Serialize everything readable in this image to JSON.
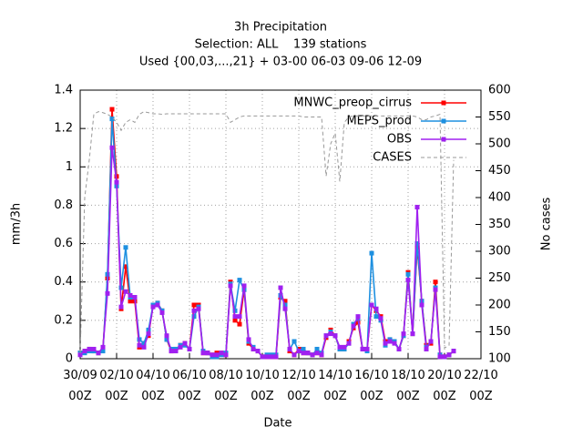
{
  "chart_data": {
    "type": "line",
    "title": "3h Precipitation",
    "subtitle": "Selection: ALL    139 stations",
    "note": "Used {00,03,...,21} + 03-00 06-03 09-06 12-09",
    "xlabel": "Date",
    "ylabel": "mm/3h",
    "y2label": "No cases",
    "x": [
      "30/09 00Z",
      "30/09 06Z",
      "30/09 12Z",
      "30/09 18Z",
      "01/10 00Z",
      "01/10 06Z",
      "01/10 12Z",
      "01/10 18Z",
      "02/10 00Z",
      "02/10 06Z",
      "02/10 12Z",
      "02/10 18Z",
      "03/10 00Z",
      "03/10 06Z",
      "03/10 12Z",
      "03/10 18Z",
      "04/10 00Z",
      "04/10 06Z",
      "04/10 12Z",
      "04/10 18Z",
      "05/10 00Z",
      "05/10 06Z",
      "05/10 12Z",
      "05/10 18Z",
      "06/10 00Z",
      "06/10 06Z",
      "06/10 12Z",
      "06/10 18Z",
      "07/10 00Z",
      "07/10 06Z",
      "07/10 12Z",
      "07/10 18Z",
      "08/10 00Z",
      "08/10 06Z",
      "08/10 12Z",
      "08/10 18Z",
      "09/10 00Z",
      "09/10 06Z",
      "09/10 12Z",
      "09/10 18Z",
      "10/10 00Z",
      "10/10 06Z",
      "10/10 12Z",
      "10/10 18Z",
      "11/10 00Z",
      "11/10 06Z",
      "11/10 12Z",
      "11/10 18Z",
      "12/10 00Z",
      "12/10 06Z",
      "12/10 12Z",
      "12/10 18Z",
      "13/10 00Z",
      "13/10 06Z",
      "13/10 12Z",
      "13/10 18Z",
      "14/10 00Z",
      "14/10 06Z",
      "14/10 12Z",
      "14/10 18Z",
      "15/10 00Z",
      "15/10 06Z",
      "15/10 12Z",
      "15/10 18Z",
      "16/10 00Z",
      "16/10 06Z",
      "16/10 12Z",
      "16/10 18Z",
      "17/10 00Z",
      "17/10 06Z",
      "17/10 12Z",
      "17/10 18Z",
      "18/10 00Z",
      "18/10 06Z",
      "18/10 12Z",
      "18/10 18Z",
      "19/10 00Z",
      "19/10 06Z",
      "19/10 12Z",
      "19/10 18Z",
      "20/10 00Z",
      "20/10 06Z",
      "20/10 12Z"
    ],
    "series": [
      {
        "name": "MNWC_preop_cirrus",
        "color": "#ff0000",
        "values": [
          0.03,
          0.04,
          0.05,
          0.04,
          0.03,
          0.05,
          0.42,
          1.3,
          0.95,
          0.26,
          0.48,
          0.3,
          0.3,
          0.06,
          0.08,
          0.12,
          0.28,
          0.29,
          0.25,
          0.1,
          0.04,
          0.05,
          0.07,
          0.08,
          0.05,
          0.28,
          0.28,
          0.03,
          0.03,
          0.02,
          0.03,
          0.03,
          0.02,
          0.4,
          0.2,
          0.18,
          0.36,
          0.08,
          0.05,
          0.04,
          0.01,
          0.01,
          0.01,
          0.01,
          0.32,
          0.3,
          0.04,
          0.02,
          0.05,
          0.03,
          0.03,
          0.02,
          0.03,
          0.02,
          0.11,
          0.15,
          0.12,
          0.05,
          0.05,
          0.09,
          0.16,
          0.19,
          0.05,
          0.05,
          0.28,
          0.25,
          0.22,
          0.09,
          0.1,
          0.09,
          0.05,
          0.12,
          0.45,
          0.13,
          0.58,
          0.3,
          0.07,
          0.08,
          0.4,
          0.02,
          0.01,
          0.02,
          0.04
        ]
      },
      {
        "name": "MEPS_prod",
        "color": "#1e90e0",
        "values": [
          0.03,
          0.03,
          0.04,
          0.04,
          0.03,
          0.04,
          0.44,
          1.25,
          0.9,
          0.37,
          0.58,
          0.32,
          0.32,
          0.1,
          0.08,
          0.15,
          0.28,
          0.29,
          0.25,
          0.1,
          0.05,
          0.05,
          0.07,
          0.07,
          0.05,
          0.22,
          0.27,
          0.04,
          0.03,
          0.01,
          0.01,
          0.02,
          0.03,
          0.39,
          0.25,
          0.41,
          0.36,
          0.09,
          0.06,
          0.04,
          0.01,
          0.02,
          0.02,
          0.02,
          0.33,
          0.28,
          0.05,
          0.09,
          0.04,
          0.05,
          0.03,
          0.02,
          0.05,
          0.03,
          0.12,
          0.14,
          0.12,
          0.05,
          0.05,
          0.08,
          0.18,
          0.21,
          0.05,
          0.04,
          0.55,
          0.22,
          0.2,
          0.07,
          0.1,
          0.09,
          0.05,
          0.12,
          0.44,
          0.13,
          0.6,
          0.3,
          0.06,
          0.09,
          0.37,
          0.02,
          0.01,
          0.02,
          0.04
        ]
      },
      {
        "name": "OBS",
        "color": "#a020f0",
        "values": [
          0.02,
          0.04,
          0.05,
          0.05,
          0.03,
          0.06,
          0.34,
          1.1,
          0.92,
          0.27,
          0.35,
          0.33,
          0.32,
          0.07,
          0.06,
          0.13,
          0.27,
          0.28,
          0.24,
          0.12,
          0.04,
          0.04,
          0.06,
          0.08,
          0.05,
          0.25,
          0.26,
          0.03,
          0.03,
          0.02,
          0.02,
          0.03,
          0.02,
          0.38,
          0.22,
          0.22,
          0.38,
          0.1,
          0.05,
          0.04,
          0.01,
          0.01,
          0.01,
          0.01,
          0.37,
          0.26,
          0.05,
          0.02,
          0.04,
          0.03,
          0.03,
          0.02,
          0.03,
          0.02,
          0.12,
          0.13,
          0.12,
          0.06,
          0.06,
          0.08,
          0.17,
          0.22,
          0.05,
          0.05,
          0.28,
          0.26,
          0.21,
          0.08,
          0.09,
          0.08,
          0.05,
          0.13,
          0.41,
          0.13,
          0.79,
          0.28,
          0.05,
          0.09,
          0.36,
          0.01,
          0.01,
          0.02,
          0.04
        ]
      },
      {
        "name": "CASES",
        "color": "#999999",
        "axis": "y2",
        "dashed": true,
        "values": [
          110,
          400,
          470,
          555,
          560,
          558,
          555,
          550,
          540,
          525,
          540,
          545,
          540,
          555,
          560,
          558,
          556,
          556,
          555,
          556,
          556,
          556,
          556,
          556,
          556,
          556,
          556,
          556,
          556,
          556,
          556,
          556,
          556,
          540,
          545,
          550,
          552,
          552,
          552,
          552,
          552,
          552,
          552,
          552,
          552,
          552,
          552,
          552,
          552,
          550,
          550,
          550,
          550,
          550,
          440,
          500,
          520,
          430,
          540,
          550,
          552,
          552,
          552,
          552,
          552,
          552,
          552,
          552,
          552,
          552,
          552,
          552,
          552,
          552,
          550,
          545,
          545,
          550,
          552,
          555,
          120,
          125,
          470
        ]
      }
    ],
    "xlim": [
      "30/09 00Z",
      "22/10 00Z"
    ],
    "xticks": [
      "30/09 00Z",
      "02/10 00Z",
      "04/10 00Z",
      "06/10 00Z",
      "08/10 00Z",
      "10/10 00Z",
      "12/10 00Z",
      "14/10 00Z",
      "16/10 00Z",
      "18/10 00Z",
      "20/10 00Z",
      "22/10 00Z"
    ],
    "ylim": [
      0,
      1.4
    ],
    "yticks": [
      0,
      0.2,
      0.4,
      0.6,
      0.8,
      1,
      1.2,
      1.4
    ],
    "y2lim": [
      100,
      600
    ],
    "y2ticks": [
      100,
      150,
      200,
      250,
      300,
      350,
      400,
      450,
      500,
      550,
      600
    ],
    "grid": true,
    "legend": "top-right"
  }
}
